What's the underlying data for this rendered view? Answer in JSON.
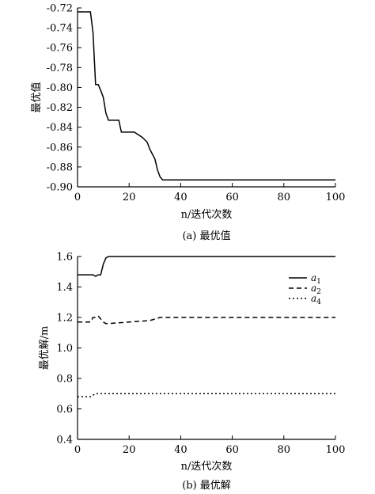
{
  "chart_data": [
    {
      "type": "line",
      "xlabel": "n/迭代次数",
      "ylabel": "最优值",
      "caption": "(a) 最优值",
      "xlim": [
        0,
        100
      ],
      "ylim": [
        -0.9,
        -0.72
      ],
      "xticks": [
        "0",
        "20",
        "40",
        "60",
        "80",
        "100"
      ],
      "yticks": [
        "-0.72",
        "-0.74",
        "-0.76",
        "-0.78",
        "-0.80",
        "-0.82",
        "-0.84",
        "-0.86",
        "-0.88",
        "-0.90"
      ],
      "grid": false,
      "series": [
        {
          "style": "solid",
          "x": [
            0,
            5,
            6,
            7,
            8,
            9,
            10,
            11,
            12,
            13,
            16,
            17,
            21,
            22,
            25,
            27,
            28,
            30,
            31,
            32,
            33,
            100
          ],
          "y": [
            -0.724,
            -0.724,
            -0.745,
            -0.797,
            -0.797,
            -0.803,
            -0.81,
            -0.826,
            -0.833,
            -0.833,
            -0.833,
            -0.845,
            -0.845,
            -0.845,
            -0.85,
            -0.855,
            -0.862,
            -0.872,
            -0.883,
            -0.89,
            -0.893,
            -0.893
          ]
        }
      ]
    },
    {
      "type": "line",
      "xlabel": "n/迭代次数",
      "ylabel": "最优解/m",
      "caption": "(b) 最优解",
      "xlim": [
        0,
        100
      ],
      "ylim": [
        0.4,
        1.6
      ],
      "xticks": [
        "0",
        "20",
        "40",
        "60",
        "80",
        "100"
      ],
      "yticks": [
        "0.4",
        "0.6",
        "0.8",
        "1.0",
        "1.2",
        "1.4",
        "1.6"
      ],
      "grid": false,
      "legend": "top-right",
      "series": [
        {
          "name": "a",
          "subscript": "1",
          "style": "solid",
          "x": [
            0,
            6,
            7,
            8,
            9,
            10,
            11,
            12,
            100
          ],
          "y": [
            1.48,
            1.48,
            1.47,
            1.48,
            1.48,
            1.55,
            1.59,
            1.6,
            1.6
          ]
        },
        {
          "name": "a",
          "subscript": "2",
          "style": "dashed",
          "x": [
            0,
            5,
            6,
            7,
            8,
            9,
            10,
            11,
            12,
            20,
            28,
            32,
            35,
            100
          ],
          "y": [
            1.17,
            1.17,
            1.2,
            1.2,
            1.21,
            1.19,
            1.17,
            1.16,
            1.16,
            1.17,
            1.18,
            1.2,
            1.2,
            1.2
          ]
        },
        {
          "name": "a",
          "subscript": "4",
          "style": "dotted",
          "x": [
            0,
            5,
            6,
            7,
            100
          ],
          "y": [
            0.68,
            0.68,
            0.69,
            0.7,
            0.7
          ]
        }
      ]
    }
  ]
}
